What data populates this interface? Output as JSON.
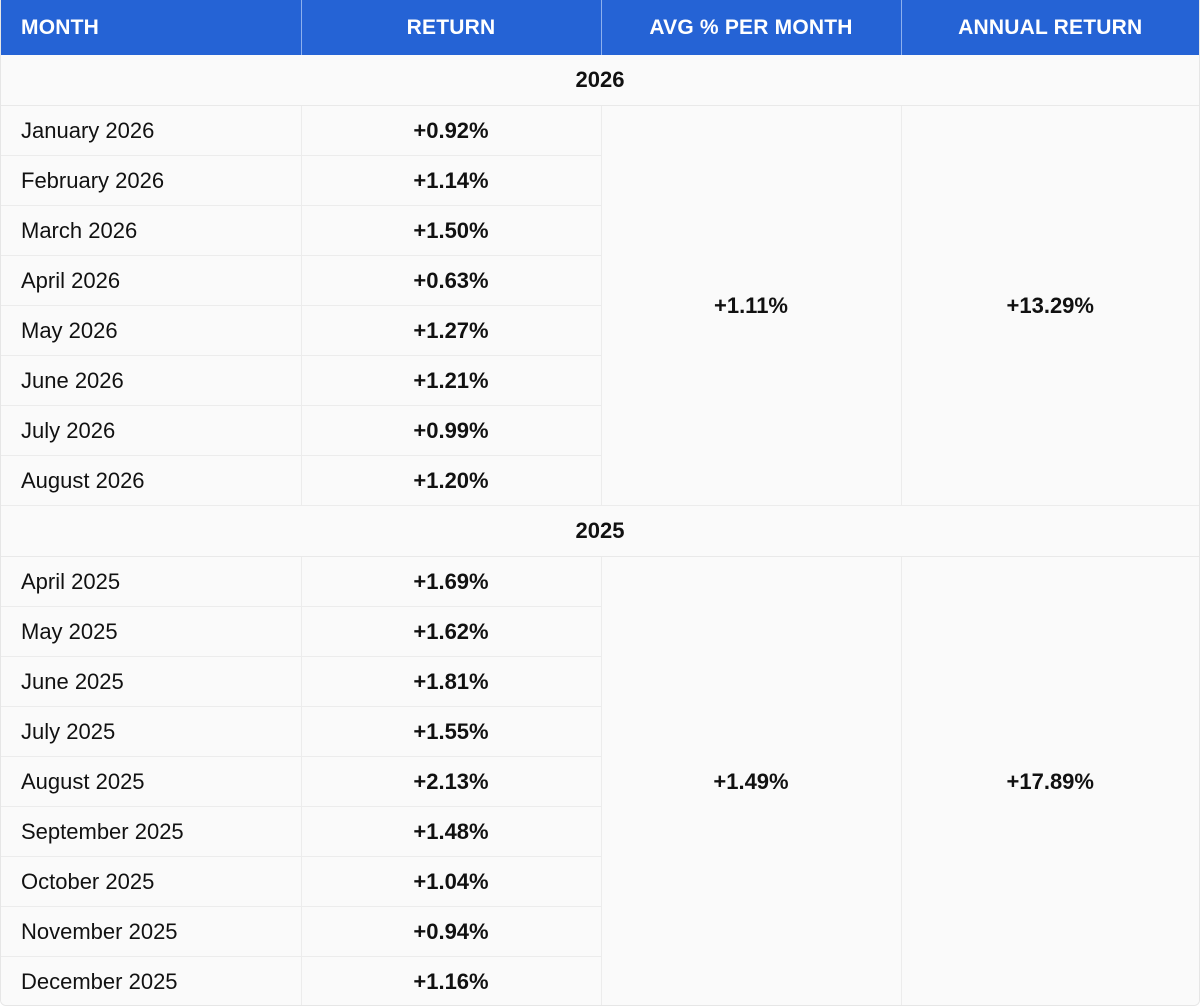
{
  "headers": {
    "month": "MONTH",
    "return": "RETURN",
    "avg": "AVG % PER MONTH",
    "annual": "ANNUAL RETURN"
  },
  "groups": [
    {
      "year": "2026",
      "avg": "+1.11%",
      "annual": "+13.29%",
      "rows": [
        {
          "month": "January 2026",
          "ret": "+0.92%"
        },
        {
          "month": "February 2026",
          "ret": "+1.14%"
        },
        {
          "month": "March 2026",
          "ret": "+1.50%"
        },
        {
          "month": "April 2026",
          "ret": "+0.63%"
        },
        {
          "month": "May 2026",
          "ret": "+1.27%"
        },
        {
          "month": "June 2026",
          "ret": "+1.21%"
        },
        {
          "month": "July 2026",
          "ret": "+0.99%"
        },
        {
          "month": "August 2026",
          "ret": "+1.20%"
        }
      ]
    },
    {
      "year": "2025",
      "avg": "+1.49%",
      "annual": "+17.89%",
      "rows": [
        {
          "month": "April 2025",
          "ret": "+1.69%"
        },
        {
          "month": "May 2025",
          "ret": "+1.62%"
        },
        {
          "month": "June 2025",
          "ret": "+1.81%"
        },
        {
          "month": "July 2025",
          "ret": "+1.55%"
        },
        {
          "month": "August 2025",
          "ret": "+2.13%"
        },
        {
          "month": "September 2025",
          "ret": "+1.48%"
        },
        {
          "month": "October 2025",
          "ret": "+1.04%"
        },
        {
          "month": "November 2025",
          "ret": "+0.94%"
        },
        {
          "month": "December 2025",
          "ret": "+1.16%"
        }
      ]
    }
  ],
  "colors": {
    "header_bg": "#2563d5",
    "header_text": "#ffffff",
    "row_bg": "#fafafa",
    "border": "#ececec"
  }
}
